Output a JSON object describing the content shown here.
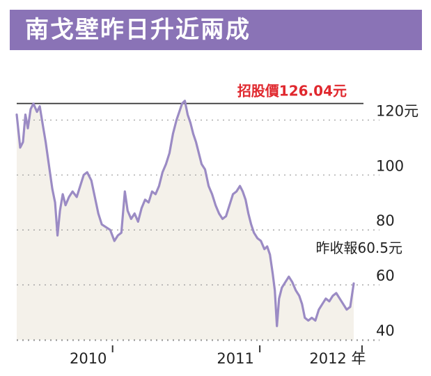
{
  "title": "南戈壁昨日升近兩成",
  "chart_data": {
    "type": "area",
    "ylim": [
      40,
      130
    ],
    "yticks": [
      40,
      60,
      80,
      100,
      120
    ],
    "ytick_labels": [
      "40",
      "60",
      "80",
      "100",
      "120元"
    ],
    "xticks": [
      {
        "label": "2010",
        "t": 0.205
      },
      {
        "label": "2011",
        "t": 0.627
      },
      {
        "label": "2012 年",
        "t": 0.92
      }
    ],
    "reference_line": {
      "value": 126.04,
      "label": "招股價126.04元"
    },
    "last_close_label": "昨收報60.5元",
    "colors": {
      "line": "#9b8bc4",
      "fill": "#f4f1ea",
      "ref_line": "#333333",
      "price_label": "#e0282e",
      "grid": "#999999"
    },
    "series": [
      {
        "points": [
          [
            0.0,
            122
          ],
          [
            0.01,
            110
          ],
          [
            0.018,
            112
          ],
          [
            0.025,
            122
          ],
          [
            0.032,
            117
          ],
          [
            0.04,
            124
          ],
          [
            0.048,
            126
          ],
          [
            0.058,
            123
          ],
          [
            0.066,
            125
          ],
          [
            0.075,
            118
          ],
          [
            0.083,
            112
          ],
          [
            0.093,
            103
          ],
          [
            0.102,
            95
          ],
          [
            0.11,
            90
          ],
          [
            0.117,
            78
          ],
          [
            0.124,
            87
          ],
          [
            0.132,
            93
          ],
          [
            0.14,
            89
          ],
          [
            0.15,
            92
          ],
          [
            0.16,
            94
          ],
          [
            0.172,
            92
          ],
          [
            0.182,
            96
          ],
          [
            0.192,
            100
          ],
          [
            0.202,
            101
          ],
          [
            0.214,
            98
          ],
          [
            0.224,
            92
          ],
          [
            0.234,
            86
          ],
          [
            0.244,
            82
          ],
          [
            0.256,
            81
          ],
          [
            0.268,
            80
          ],
          [
            0.28,
            76
          ],
          [
            0.29,
            78
          ],
          [
            0.3,
            79
          ],
          [
            0.31,
            94
          ],
          [
            0.318,
            87
          ],
          [
            0.328,
            84
          ],
          [
            0.338,
            86
          ],
          [
            0.348,
            83
          ],
          [
            0.358,
            88
          ],
          [
            0.368,
            91
          ],
          [
            0.378,
            90
          ],
          [
            0.388,
            94
          ],
          [
            0.398,
            93
          ],
          [
            0.408,
            96
          ],
          [
            0.418,
            101
          ],
          [
            0.428,
            104
          ],
          [
            0.438,
            108
          ],
          [
            0.448,
            115
          ],
          [
            0.458,
            120
          ],
          [
            0.466,
            123
          ],
          [
            0.474,
            126
          ],
          [
            0.482,
            127
          ],
          [
            0.49,
            122
          ],
          [
            0.498,
            119
          ],
          [
            0.506,
            115
          ],
          [
            0.514,
            112
          ],
          [
            0.522,
            108
          ],
          [
            0.53,
            104
          ],
          [
            0.54,
            102
          ],
          [
            0.55,
            96
          ],
          [
            0.56,
            93
          ],
          [
            0.57,
            89
          ],
          [
            0.58,
            86
          ],
          [
            0.59,
            84
          ],
          [
            0.6,
            85
          ],
          [
            0.61,
            89
          ],
          [
            0.62,
            93
          ],
          [
            0.63,
            94
          ],
          [
            0.64,
            96
          ],
          [
            0.648,
            94
          ],
          [
            0.656,
            91
          ],
          [
            0.664,
            86
          ],
          [
            0.672,
            82
          ],
          [
            0.68,
            79
          ],
          [
            0.69,
            77
          ],
          [
            0.7,
            76
          ],
          [
            0.71,
            73
          ],
          [
            0.718,
            74
          ],
          [
            0.726,
            71
          ],
          [
            0.734,
            64
          ],
          [
            0.74,
            58
          ],
          [
            0.746,
            45
          ],
          [
            0.752,
            55
          ],
          [
            0.76,
            59
          ],
          [
            0.77,
            61
          ],
          [
            0.78,
            63
          ],
          [
            0.79,
            61
          ],
          [
            0.8,
            58
          ],
          [
            0.81,
            56
          ],
          [
            0.818,
            53
          ],
          [
            0.826,
            48
          ],
          [
            0.836,
            47
          ],
          [
            0.846,
            48
          ],
          [
            0.856,
            47
          ],
          [
            0.866,
            51
          ],
          [
            0.876,
            53
          ],
          [
            0.886,
            55
          ],
          [
            0.896,
            54
          ],
          [
            0.906,
            56
          ],
          [
            0.916,
            57
          ],
          [
            0.926,
            55
          ],
          [
            0.936,
            53
          ],
          [
            0.946,
            51
          ],
          [
            0.956,
            52
          ],
          [
            0.966,
            60.5
          ]
        ]
      }
    ]
  }
}
